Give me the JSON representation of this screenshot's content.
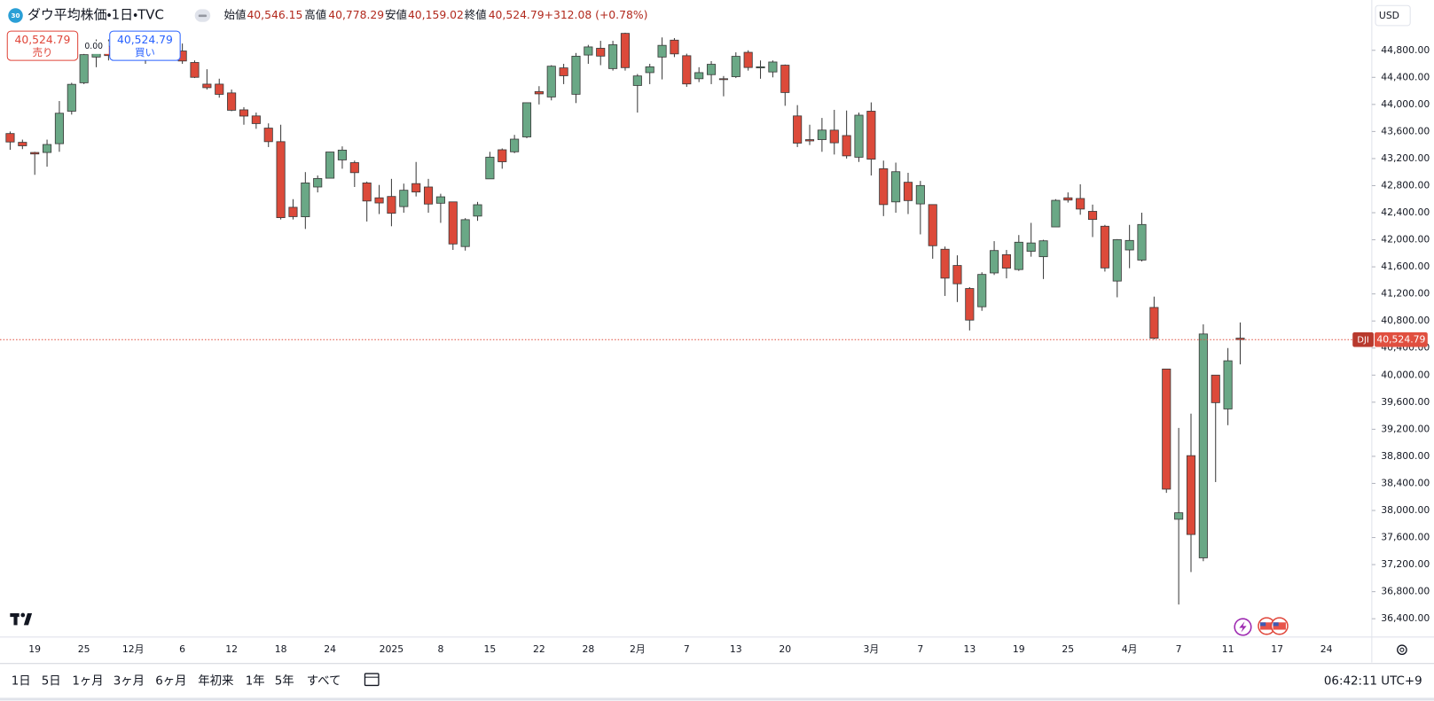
{
  "chart_data": {
    "type": "candlestick",
    "title": "ダウ平均株価・1日・TVC",
    "symbol_badge": "30",
    "header": {
      "open_label": "始値",
      "open": "40,546.15",
      "high_label": "高値",
      "high": "40,778.29",
      "low_label": "安値",
      "low": "40,159.02",
      "close_label": "終値",
      "close": "40,524.79",
      "change": "+312.08 (+0.78%)"
    },
    "trade": {
      "sell_price": "40,524.79",
      "sell_label": "売り",
      "spread": "0.00",
      "buy_price": "40,524.79",
      "buy_label": "買い"
    },
    "price_label": {
      "symbol": "DJI",
      "value": "40,524.79"
    },
    "currency": "USD",
    "up_color": "#6aa886",
    "down_color": "#dc4a3a",
    "wick_color": "#3a3a3a",
    "last_price_line_color": "#e04f3f",
    "categories": [
      null,
      null,
      "19",
      null,
      null,
      null,
      "25",
      null,
      null,
      null,
      "12月",
      null,
      null,
      null,
      "6",
      null,
      null,
      null,
      "12",
      null,
      null,
      null,
      "18",
      null,
      null,
      null,
      "24",
      null,
      null,
      null,
      null,
      "2025",
      null,
      null,
      null,
      "8",
      null,
      null,
      null,
      "15",
      null,
      null,
      null,
      "22",
      null,
      null,
      null,
      "28",
      null,
      null,
      null,
      "2月",
      null,
      null,
      null,
      "7",
      null,
      null,
      null,
      "13",
      null,
      null,
      null,
      "20",
      null,
      null,
      null,
      null,
      null,
      null,
      "3月",
      null,
      null,
      null,
      "7",
      null,
      null,
      null,
      "13",
      null,
      null,
      null,
      "19",
      null,
      null,
      null,
      "25",
      null,
      null,
      null,
      null,
      "4月",
      null,
      null,
      null,
      "7",
      null,
      null,
      null,
      "11",
      null,
      null,
      null,
      "17",
      null,
      null,
      null,
      "24"
    ],
    "open": [
      43570,
      43440,
      43290,
      43290,
      43420,
      43900,
      44320,
      44700,
      44860,
      44750,
      44900,
      44780,
      44720,
      45010,
      44790,
      44620,
      44300,
      44300,
      44170,
      43920,
      43830,
      43650,
      43450,
      42480,
      42340,
      42780,
      42910,
      43180,
      43140,
      42840,
      42620,
      42640,
      42490,
      42830,
      42780,
      42540,
      42560,
      41900,
      42350,
      42900,
      43330,
      43300,
      43520,
      44190,
      44110,
      44540,
      44150,
      44730,
      44830,
      44530,
      45050,
      44280,
      44470,
      44700,
      44950,
      44720,
      44380,
      44440,
      44380,
      44410,
      44770,
      44540,
      44480,
      44580,
      43830,
      43480,
      43480,
      43620,
      43540,
      43220,
      43900,
      43050,
      42560,
      42850,
      42530,
      42520,
      41860,
      41620,
      41280,
      41010,
      41510,
      41780,
      41560,
      41830,
      41750,
      42190,
      42620,
      42610,
      42420,
      42200,
      41390,
      41850,
      41700,
      41000,
      40090,
      37870,
      38810,
      37300,
      40000,
      39500,
      40546.15,
      null,
      null,
      null,
      null,
      null,
      null,
      null
    ],
    "high": [
      43600,
      43480,
      43300,
      43480,
      44050,
      44320,
      44800,
      44960,
      44960,
      44960,
      44950,
      44800,
      45060,
      45080,
      44900,
      44650,
      44520,
      44380,
      44220,
      43960,
      43880,
      43720,
      43700,
      42600,
      43000,
      42950,
      43300,
      43380,
      43170,
      42860,
      42810,
      42900,
      42830,
      43150,
      42900,
      42680,
      42560,
      42320,
      42560,
      43300,
      43350,
      43550,
      44030,
      44270,
      44580,
      44600,
      44760,
      44880,
      44940,
      44940,
      45060,
      44450,
      44600,
      44990,
      44980,
      44750,
      44550,
      44640,
      44420,
      44770,
      44800,
      44650,
      44650,
      44590,
      43990,
      43700,
      43800,
      43920,
      43910,
      43880,
      44030,
      43170,
      43140,
      42990,
      42870,
      42520,
      41900,
      41770,
      41300,
      41520,
      41980,
      41850,
      42070,
      42250,
      42000,
      42600,
      42700,
      42820,
      42520,
      42220,
      42010,
      42220,
      42400,
      41160,
      40090,
      39220,
      39430,
      40750,
      40000,
      40400,
      40778.29,
      null,
      null,
      null,
      null,
      null,
      null,
      null
    ],
    "low": [
      43330,
      43340,
      42960,
      43080,
      43300,
      43850,
      44300,
      44550,
      44650,
      44700,
      44650,
      44600,
      44700,
      44740,
      44600,
      44390,
      44220,
      44100,
      43900,
      43700,
      43640,
      43370,
      42300,
      42300,
      42160,
      42700,
      42910,
      43050,
      42780,
      42270,
      42380,
      42200,
      42400,
      42640,
      42400,
      42250,
      41850,
      41840,
      42280,
      42900,
      43050,
      43280,
      43500,
      44000,
      44060,
      44300,
      44020,
      44600,
      44580,
      44500,
      44500,
      43880,
      44300,
      44370,
      44700,
      44260,
      44330,
      44300,
      44120,
      44390,
      44500,
      44380,
      44400,
      43980,
      43370,
      43400,
      43300,
      43260,
      43200,
      43150,
      42950,
      42350,
      42400,
      42380,
      42080,
      41720,
      41170,
      41080,
      40660,
      40950,
      41480,
      41430,
      41540,
      41750,
      41420,
      42190,
      42550,
      42370,
      42040,
      41530,
      41150,
      41580,
      41680,
      40530,
      38260,
      36610,
      37090,
      37250,
      38420,
      39260,
      40159.02,
      null,
      null,
      null,
      null,
      null,
      null,
      null
    ],
    "close": [
      43445,
      43389,
      43268,
      43408,
      43870,
      44297,
      44736,
      44860,
      44722,
      44911,
      44782,
      44705,
      45014,
      44765,
      44642,
      44401,
      44248,
      44149,
      43914,
      43828,
      43717,
      43450,
      42327,
      42342,
      42840,
      42906,
      43297,
      43325,
      42992,
      42573,
      42544,
      42392,
      42732,
      42706,
      42528,
      42635,
      41938,
      42297,
      42518,
      43221,
      43153,
      43487,
      44025,
      44156,
      44565,
      44424,
      44713,
      44850,
      44714,
      44882,
      44544,
      44421,
      44556,
      44873,
      44747,
      44303,
      44470,
      44593,
      44368,
      44711,
      44546,
      44556,
      44627,
      44176,
      43428,
      43461,
      43621,
      43433,
      43240,
      43841,
      43191,
      42520,
      43006,
      42579,
      42802,
      41912,
      41433,
      41350,
      40813,
      41488,
      41841,
      41581,
      41964,
      41953,
      41985,
      42583,
      42587,
      42454,
      42300,
      41584,
      42002,
      41990,
      42226,
      40545,
      38315,
      37966,
      37645,
      40608,
      39593,
      40212,
      40524.79,
      null,
      null,
      null,
      null,
      null,
      null,
      null
    ],
    "ylim": [
      36130,
      45543
    ],
    "yticks": [
      {
        "value": 36400,
        "label": "36,400.00"
      },
      {
        "value": 36800,
        "label": "36,800.00"
      },
      {
        "value": 37200,
        "label": "37,200.00"
      },
      {
        "value": 37600,
        "label": "37,600.00"
      },
      {
        "value": 38000,
        "label": "38,000.00"
      },
      {
        "value": 38400,
        "label": "38,400.00"
      },
      {
        "value": 38800,
        "label": "38,800.00"
      },
      {
        "value": 39200,
        "label": "39,200.00"
      },
      {
        "value": 39600,
        "label": "39,600.00"
      },
      {
        "value": 40000,
        "label": "40,000.00"
      },
      {
        "value": 40400,
        "label": "40,400.00"
      },
      {
        "value": 40800,
        "label": "40,800.00"
      },
      {
        "value": 41200,
        "label": "41,200.00"
      },
      {
        "value": 41600,
        "label": "41,600.00"
      },
      {
        "value": 42000,
        "label": "42,000.00"
      },
      {
        "value": 42400,
        "label": "42,400.00"
      },
      {
        "value": 42800,
        "label": "42,800.00"
      },
      {
        "value": 43200,
        "label": "43,200.00"
      },
      {
        "value": 43600,
        "label": "43,600.00"
      },
      {
        "value": 44000,
        "label": "44,000.00"
      },
      {
        "value": 44400,
        "label": "44,400.00"
      },
      {
        "value": 44800,
        "label": "44,800.00"
      }
    ],
    "grid": false,
    "toolbar": {
      "periods": [
        "1日",
        "5日",
        "1ヶ月",
        "3ヶ月",
        "6ヶ月",
        "年初来",
        "1年",
        "5年",
        "すべて"
      ],
      "time": "06:42:11 UTC+9"
    }
  }
}
